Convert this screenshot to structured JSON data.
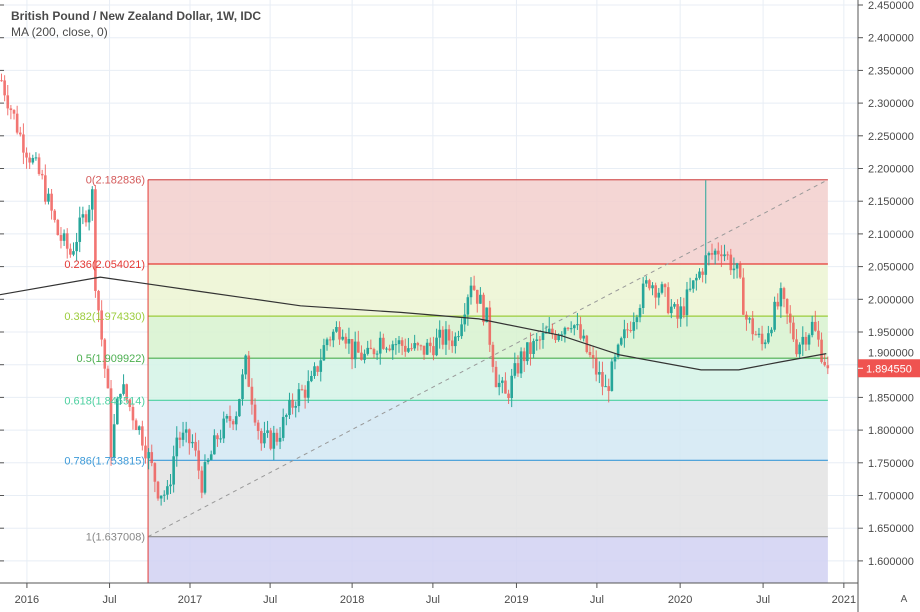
{
  "header": {
    "title": "British Pound / New Zealand Dollar, 1W, IDC",
    "indicator": "MA (200, close, 0)"
  },
  "auto_scale_button": "A",
  "colors": {
    "up": "#26a69a",
    "down": "#ef5350",
    "ma": "#333333",
    "price_label": "#ef5350"
  },
  "chart_data": {
    "type": "candlestick",
    "title": "British Pound / New Zealand Dollar, 1W, IDC",
    "interval": "1W",
    "ylim": [
      1.58,
      2.46
    ],
    "y_ticks": [
      "2.450000",
      "2.400000",
      "2.350000",
      "2.300000",
      "2.250000",
      "2.200000",
      "2.150000",
      "2.100000",
      "2.050000",
      "2.000000",
      "1.950000",
      "1.900000",
      "1.850000",
      "1.800000",
      "1.750000",
      "1.700000",
      "1.650000",
      "1.600000"
    ],
    "x_ticks": [
      {
        "label": "2016",
        "week": 8.6
      },
      {
        "label": "Jul",
        "week": 35
      },
      {
        "label": "2017",
        "week": 60.7
      },
      {
        "label": "Jul",
        "week": 86.3
      },
      {
        "label": "2018",
        "week": 112.5
      },
      {
        "label": "Jul",
        "week": 138.3
      },
      {
        "label": "2019",
        "week": 165
      },
      {
        "label": "Jul",
        "week": 190.7
      },
      {
        "label": "2020",
        "week": 217.3
      },
      {
        "label": "Jul",
        "week": 243.8
      },
      {
        "label": "2021",
        "week": 269.6
      }
    ],
    "price_path_keypoints": [
      [
        0,
        2.335
      ],
      [
        6,
        2.25
      ],
      [
        13,
        2.18
      ],
      [
        18,
        2.1
      ],
      [
        22,
        2.07
      ],
      [
        29,
        2.16
      ],
      [
        30,
        2.03
      ],
      [
        34,
        1.85
      ],
      [
        35,
        1.77
      ],
      [
        38,
        1.87
      ],
      [
        45,
        1.79
      ],
      [
        50,
        1.71
      ],
      [
        53,
        1.7
      ],
      [
        56,
        1.79
      ],
      [
        61,
        1.78
      ],
      [
        64,
        1.72
      ],
      [
        69,
        1.79
      ],
      [
        75,
        1.83
      ],
      [
        78,
        1.9
      ],
      [
        83,
        1.78
      ],
      [
        88,
        1.79
      ],
      [
        94,
        1.85
      ],
      [
        99,
        1.87
      ],
      [
        104,
        1.94
      ],
      [
        109,
        1.96
      ],
      [
        112,
        1.92
      ],
      [
        117,
        1.91
      ],
      [
        121,
        1.94
      ],
      [
        128,
        1.93
      ],
      [
        134,
        1.92
      ],
      [
        141,
        1.94
      ],
      [
        145,
        1.94
      ],
      [
        150,
        2.03
      ],
      [
        155,
        1.97
      ],
      [
        158,
        1.88
      ],
      [
        161,
        1.85
      ],
      [
        166,
        1.91
      ],
      [
        173,
        1.94
      ],
      [
        177,
        1.95
      ],
      [
        182,
        1.97
      ],
      [
        185,
        1.94
      ],
      [
        190,
        1.89
      ],
      [
        193,
        1.86
      ],
      [
        198,
        1.93
      ],
      [
        203,
        1.99
      ],
      [
        207,
        2.03
      ],
      [
        211,
        2.01
      ],
      [
        216,
        1.97
      ],
      [
        220,
        2.01
      ],
      [
        225,
        2.06
      ],
      [
        230,
        2.08
      ],
      [
        235,
        2.04
      ],
      [
        238,
        1.97
      ],
      [
        243,
        1.93
      ],
      [
        246,
        1.97
      ],
      [
        249,
        2.0
      ],
      [
        254,
        1.93
      ],
      [
        259,
        1.96
      ],
      [
        264,
        1.89455
      ]
    ],
    "ma_200": [
      [
        0,
        2.007
      ],
      [
        32,
        2.034
      ],
      [
        64,
        2.012
      ],
      [
        96,
        1.99
      ],
      [
        128,
        1.98
      ],
      [
        153,
        1.97
      ],
      [
        179,
        1.945
      ],
      [
        198,
        1.915
      ],
      [
        224,
        1.892
      ],
      [
        236,
        1.892
      ],
      [
        249,
        1.904
      ],
      [
        264,
        1.917
      ]
    ],
    "last_price": "1.894550",
    "fibonacci": {
      "start_week": 47.3,
      "end_week": 264.5,
      "levels": [
        {
          "ratio": 0,
          "label": "0(2.182836)",
          "price": 2.182836,
          "line": "#d45a5a",
          "fill": "#f2cfcd"
        },
        {
          "ratio": 0.236,
          "label": "0.236(2.054021)",
          "price": 2.054021,
          "line": "#e53935",
          "fill": "#ecf4d2"
        },
        {
          "ratio": 0.382,
          "label": "0.382(1.974330)",
          "price": 1.97433,
          "line": "#9ccc3c",
          "fill": "#d7f2cf"
        },
        {
          "ratio": 0.5,
          "label": "0.5(1.909922)",
          "price": 1.909922,
          "line": "#4caf50",
          "fill": "#d4f3e6"
        },
        {
          "ratio": 0.618,
          "label": "0.618(1.845514)",
          "price": 1.845514,
          "line": "#4dd0a0",
          "fill": "#d2e7f3"
        },
        {
          "ratio": 0.786,
          "label": "0.786(1.753815)",
          "price": 1.753815,
          "line": "#3d9ad8",
          "fill": "#e3e3e3"
        },
        {
          "ratio": 1,
          "label": "1(1.637008)",
          "price": 1.637008,
          "line": "#888888",
          "fill": "#d1d1f2"
        }
      ]
    }
  }
}
